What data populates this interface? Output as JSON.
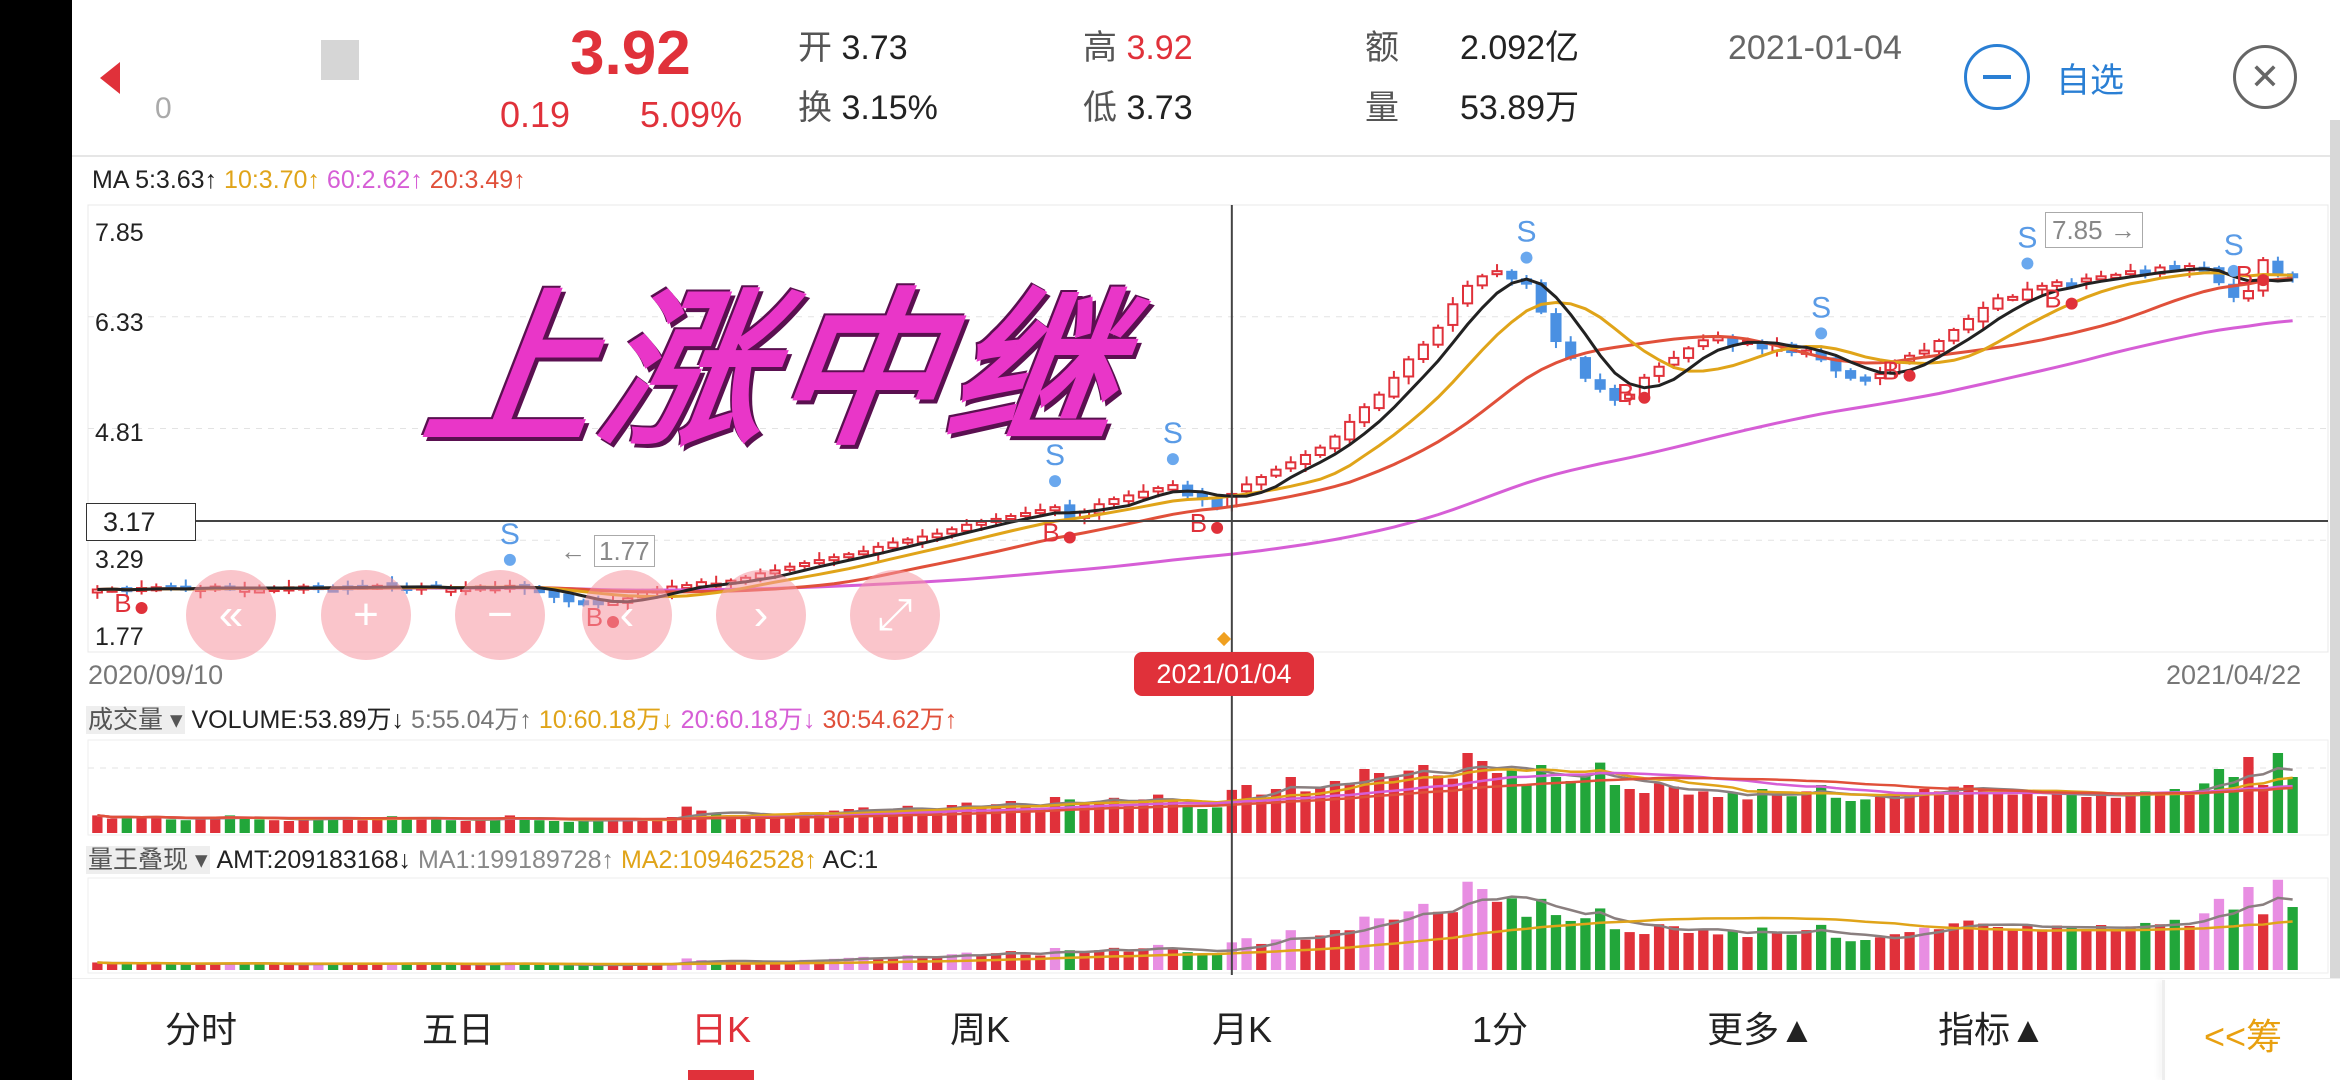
{
  "header": {
    "code_fragment": "0",
    "price": "3.92",
    "change": "0.19",
    "change_pct": "5.09%",
    "open_label": "开",
    "open": "3.73",
    "turnover_label": "换",
    "turnover": "3.15%",
    "high_label": "高",
    "high": "3.92",
    "low_label": "低",
    "low": "3.73",
    "amount_label": "额",
    "amount": "2.092亿",
    "volume_label": "量",
    "volume": "53.89万",
    "date": "2021-01-04",
    "watchlist_label": "自选"
  },
  "ma_legend": {
    "prefix": "MA",
    "ma5": "5:3.63↑",
    "ma10": "10:3.70↑",
    "ma60": "60:2.62↑",
    "ma20": "20:3.49↑"
  },
  "overlay_title": "上涨中继",
  "price_axis": [
    "7.85",
    "6.33",
    "4.81",
    "3.29",
    "1.77"
  ],
  "crosshair": {
    "price": "3.17",
    "date": "2021/01/04"
  },
  "max_marker": "7.85",
  "min_marker": "1.77",
  "date_range": {
    "start": "2020/09/10",
    "end": "2021/04/22"
  },
  "volume_legend": {
    "tag": "成交量",
    "volume": "VOLUME:53.89万↓",
    "ma5": "5:55.04万↑",
    "ma10": "10:60.18万↓",
    "ma20": "20:60.18万↓",
    "ma30": "30:54.62万↑"
  },
  "amt_legend": {
    "tag": "量王叠现",
    "amt": "AMT:209183168↓",
    "ma1": "MA1:199189728↑",
    "ma2": "MA2:109462528↑",
    "ac": "AC:1"
  },
  "tabs": [
    {
      "label": "分时"
    },
    {
      "label": "五日"
    },
    {
      "label": "日K",
      "active": true
    },
    {
      "label": "周K"
    },
    {
      "label": "月K"
    },
    {
      "label": "1分"
    },
    {
      "label": "更多▲"
    },
    {
      "label": "指标▲"
    }
  ],
  "chips_label": "<<筹",
  "colors": {
    "up": "#e0313a",
    "down_price": "#4a90e2",
    "down_volume": "#22a63a",
    "ma5": "#222222",
    "ma10": "#e0a419",
    "ma20": "#e0503a",
    "ma60": "#d65ed6",
    "overlay": "#e936c8",
    "accent": "#2a7fd4"
  },
  "chart_data": {
    "type": "candlestick",
    "ylim": [
      1.77,
      7.85
    ],
    "closes": [
      2.62,
      2.63,
      2.6,
      2.64,
      2.65,
      2.63,
      2.62,
      2.64,
      2.66,
      2.65,
      2.63,
      2.62,
      2.64,
      2.65,
      2.66,
      2.64,
      2.63,
      2.65,
      2.66,
      2.67,
      2.65,
      2.64,
      2.66,
      2.65,
      2.63,
      2.64,
      2.66,
      2.65,
      2.67,
      2.64,
      2.6,
      2.52,
      2.46,
      2.44,
      2.42,
      2.45,
      2.5,
      2.58,
      2.62,
      2.66,
      2.68,
      2.72,
      2.7,
      2.74,
      2.78,
      2.84,
      2.88,
      2.93,
      2.98,
      3.02,
      3.06,
      3.1,
      3.14,
      3.2,
      3.26,
      3.3,
      3.34,
      3.38,
      3.44,
      3.5,
      3.54,
      3.58,
      3.62,
      3.66,
      3.7,
      3.74,
      3.6,
      3.68,
      3.78,
      3.85,
      3.9,
      3.95,
      4.0,
      4.04,
      3.9,
      3.85,
      3.73,
      3.92,
      4.05,
      4.15,
      4.25,
      4.35,
      4.45,
      4.55,
      4.7,
      4.9,
      5.1,
      5.27,
      5.5,
      5.75,
      5.95,
      6.18,
      6.5,
      6.75,
      6.88,
      6.95,
      6.85,
      6.78,
      6.4,
      6.0,
      5.77,
      5.5,
      5.35,
      5.2,
      5.27,
      5.5,
      5.65,
      5.77,
      5.9,
      6.01,
      6.05,
      5.95,
      6.0,
      5.9,
      5.95,
      5.85,
      5.87,
      5.75,
      5.6,
      5.5,
      5.46,
      5.55,
      5.7,
      5.8,
      5.87,
      6.0,
      6.15,
      6.3,
      6.45,
      6.58,
      6.6,
      6.7,
      6.75,
      6.8,
      6.78,
      6.85,
      6.88,
      6.9,
      6.95,
      6.92,
      7.0,
      6.98,
      7.02,
      6.99,
      6.8,
      6.6,
      6.68,
      7.1,
      6.9,
      6.88
    ],
    "volumes_wan": [
      22,
      18,
      20,
      19,
      21,
      17,
      16,
      18,
      20,
      22,
      19,
      17,
      16,
      15,
      18,
      20,
      19,
      17,
      16,
      18,
      21,
      20,
      18,
      17,
      16,
      15,
      17,
      19,
      22,
      18,
      16,
      15,
      14,
      16,
      18,
      17,
      15,
      16,
      18,
      20,
      33,
      28,
      24,
      22,
      20,
      25,
      23,
      22,
      26,
      24,
      28,
      30,
      32,
      29,
      27,
      34,
      30,
      28,
      35,
      38,
      33,
      36,
      40,
      32,
      30,
      45,
      42,
      38,
      40,
      44,
      36,
      42,
      48,
      40,
      35,
      30,
      32,
      53.89,
      60,
      48,
      55,
      70,
      52,
      58,
      65,
      62,
      80,
      75,
      70,
      78,
      85,
      72,
      68,
      100,
      90,
      75,
      80,
      60,
      85,
      70,
      65,
      72,
      88,
      60,
      55,
      50,
      62,
      58,
      48,
      52,
      45,
      50,
      42,
      55,
      48,
      46,
      52,
      60,
      44,
      40,
      42,
      45,
      48,
      50,
      55,
      52,
      58,
      60,
      55,
      50,
      48,
      52,
      46,
      50,
      48,
      45,
      50,
      44,
      48,
      52,
      50,
      55,
      48,
      62,
      80,
      70,
      95,
      60,
      100,
      70
    ],
    "sell_signals": [
      28,
      65,
      73,
      97,
      117,
      131,
      145
    ],
    "buy_signals": [
      3,
      35,
      66,
      76,
      105,
      123,
      134,
      147
    ],
    "selected_index": 77,
    "signal_labels": {
      "buy": "B",
      "sell": "S"
    }
  }
}
